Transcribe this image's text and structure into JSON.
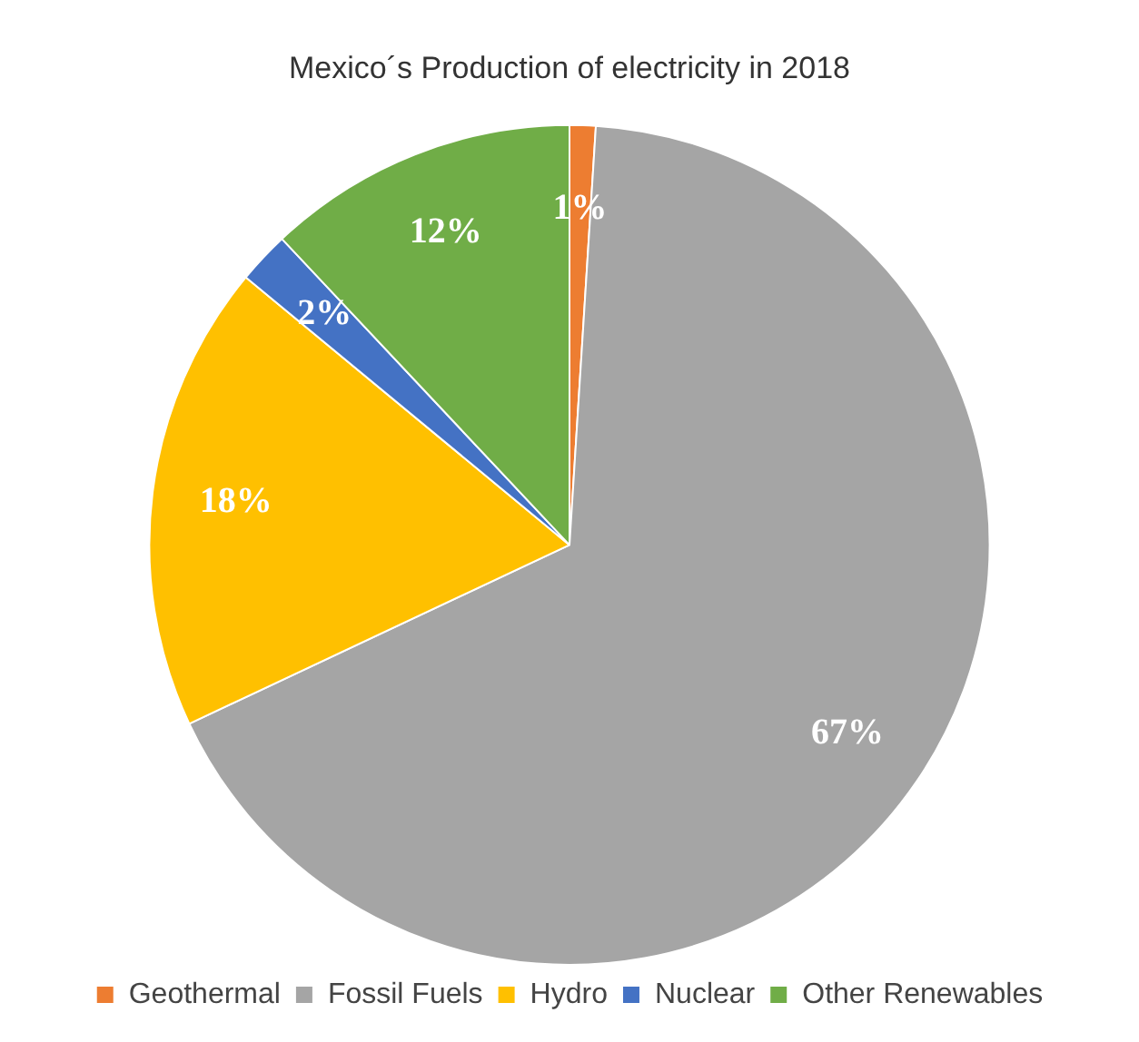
{
  "chart_data": {
    "type": "pie",
    "title": "Mexico´s Production of electricity in 2018",
    "categories": [
      "Geothermal",
      "Fossil Fuels",
      "Hydro",
      "Nuclear",
      "Other Renewables"
    ],
    "values": [
      1,
      67,
      18,
      2,
      12
    ],
    "colors": [
      "#ed7d31",
      "#a5a5a5",
      "#ffc000",
      "#4472c4",
      "#70ad47"
    ],
    "value_labels": [
      "1%",
      "67%",
      "18%",
      "2%",
      "12%"
    ],
    "legend": "bottom"
  }
}
